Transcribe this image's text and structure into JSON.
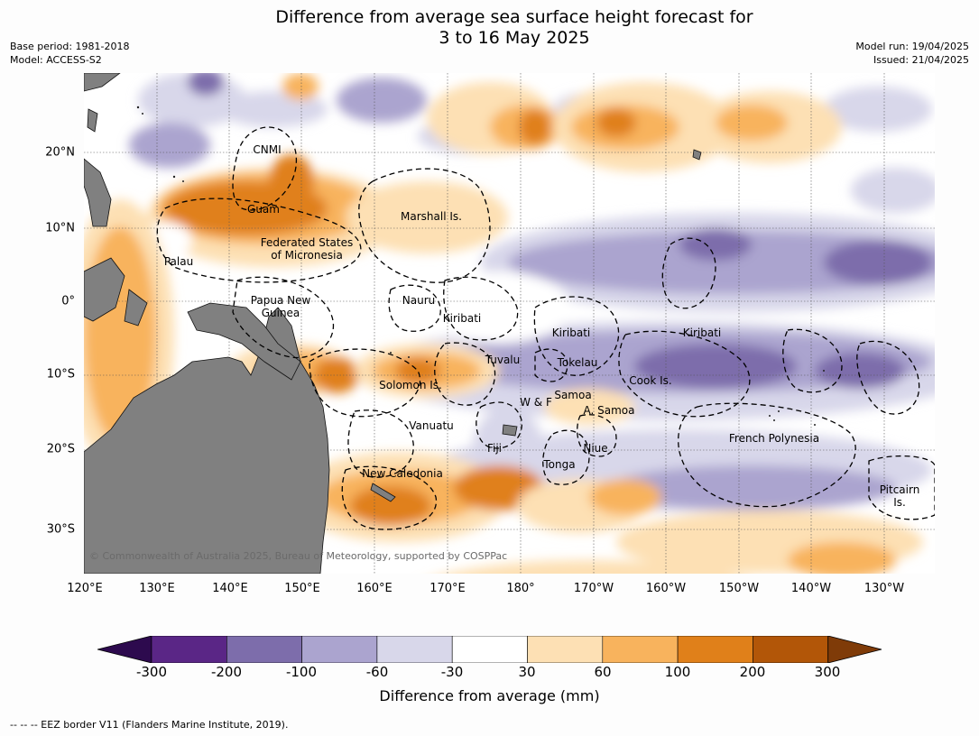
{
  "title": {
    "line1": "Difference from average sea surface height forecast for",
    "line2": "3 to 16 May 2025"
  },
  "meta_left": {
    "base_period": "Base period: 1981-2018",
    "model": "Model: ACCESS-S2"
  },
  "meta_right": {
    "model_run": "Model run: 19/04/2025",
    "issued": "Issued: 21/04/2025"
  },
  "map": {
    "lon_ticks": [
      "120°E",
      "130°E",
      "140°E",
      "150°E",
      "160°E",
      "170°E",
      "180°",
      "170°W",
      "160°W",
      "150°W",
      "140°W",
      "130°W"
    ],
    "lat_ticks": [
      "20°N",
      "10°N",
      "0°",
      "10°S",
      "20°S",
      "30°S"
    ],
    "regions": {
      "cnmi": "CNMI",
      "guam": "Guam",
      "marshall": "Marshall Is.",
      "fsm_1": "Federated States",
      "fsm_2": "of Micronesia",
      "palau": "Palau",
      "png_1": "Papua New",
      "png_2": "Guinea",
      "nauru": "Nauru",
      "kiribati_w": "Kiribati",
      "kiribati_c": "Kiribati",
      "kiribati_e": "Kiribati",
      "tuvalu": "Tuvalu",
      "tokelau": "Tokelau",
      "cook": "Cook Is.",
      "solomon": "Solomon Is.",
      "samoa": "Samoa",
      "wf": "W & F",
      "asamoa": "A. Samoa",
      "vanuatu": "Vanuatu",
      "fiji": "Fiji",
      "niue": "Niue",
      "tonga": "Tonga",
      "newcal": "New Caledonia",
      "frpoly": "French Polynesia",
      "pitcairn_1": "Pitcairn",
      "pitcairn_2": "Is."
    },
    "copyright": "© Commonwealth of Australia 2025, Bureau of Meteorology, supported by COSPPac"
  },
  "colorbar": {
    "label": "Difference from average (mm)",
    "ticks": [
      "-300",
      "-200",
      "-100",
      "-60",
      "-30",
      "30",
      "60",
      "100",
      "200",
      "300"
    ],
    "colors": [
      "#2d0a4e",
      "#5a2686",
      "#7d6dab",
      "#aba4cf",
      "#d8d7ea",
      "#ffffff",
      "#fde0b4",
      "#f8b35d",
      "#e0801a",
      "#b25608",
      "#7f3b08"
    ]
  },
  "footnote": "--  --  -- EEZ border V11 (Flanders Marine Institute, 2019)."
}
